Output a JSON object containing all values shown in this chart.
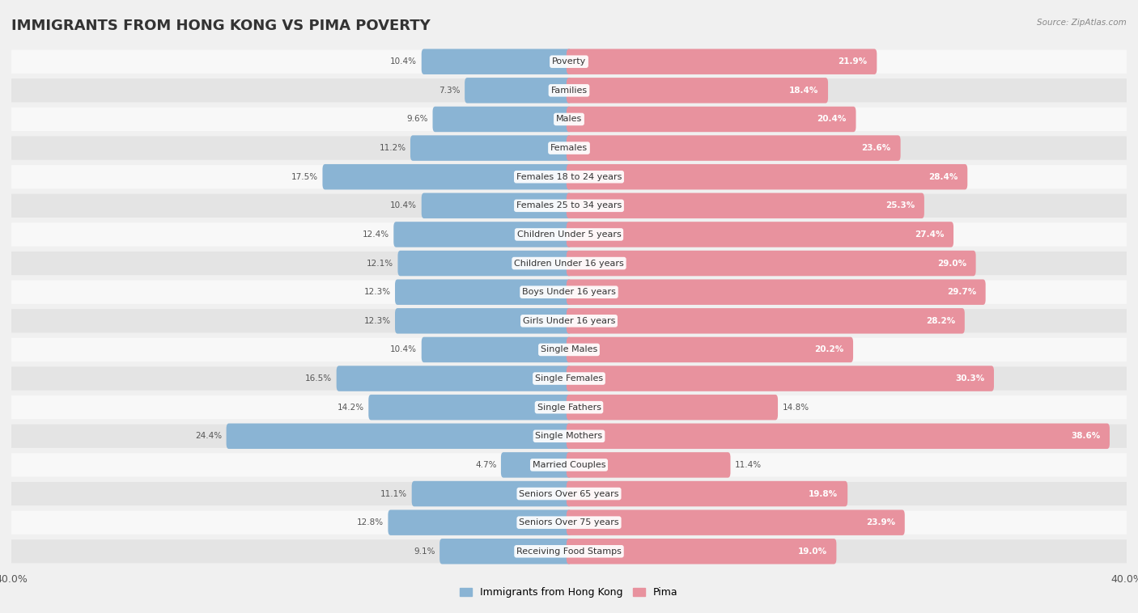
{
  "title": "IMMIGRANTS FROM HONG KONG VS PIMA POVERTY",
  "source": "Source: ZipAtlas.com",
  "categories": [
    "Poverty",
    "Families",
    "Males",
    "Females",
    "Females 18 to 24 years",
    "Females 25 to 34 years",
    "Children Under 5 years",
    "Children Under 16 years",
    "Boys Under 16 years",
    "Girls Under 16 years",
    "Single Males",
    "Single Females",
    "Single Fathers",
    "Single Mothers",
    "Married Couples",
    "Seniors Over 65 years",
    "Seniors Over 75 years",
    "Receiving Food Stamps"
  ],
  "left_values": [
    10.4,
    7.3,
    9.6,
    11.2,
    17.5,
    10.4,
    12.4,
    12.1,
    12.3,
    12.3,
    10.4,
    16.5,
    14.2,
    24.4,
    4.7,
    11.1,
    12.8,
    9.1
  ],
  "right_values": [
    21.9,
    18.4,
    20.4,
    23.6,
    28.4,
    25.3,
    27.4,
    29.0,
    29.7,
    28.2,
    20.2,
    30.3,
    14.8,
    38.6,
    11.4,
    19.8,
    23.9,
    19.0
  ],
  "left_color": "#8ab4d4",
  "right_color": "#e8929e",
  "left_label": "Immigrants from Hong Kong",
  "right_label": "Pima",
  "axis_max": 40.0,
  "background_color": "#f0f0f0",
  "row_bg_light": "#f8f8f8",
  "row_bg_dark": "#e4e4e4",
  "title_fontsize": 13,
  "cat_fontsize": 8,
  "value_fontsize": 7.5,
  "inside_value_color": "#ffffff",
  "outside_value_color": "#555555"
}
